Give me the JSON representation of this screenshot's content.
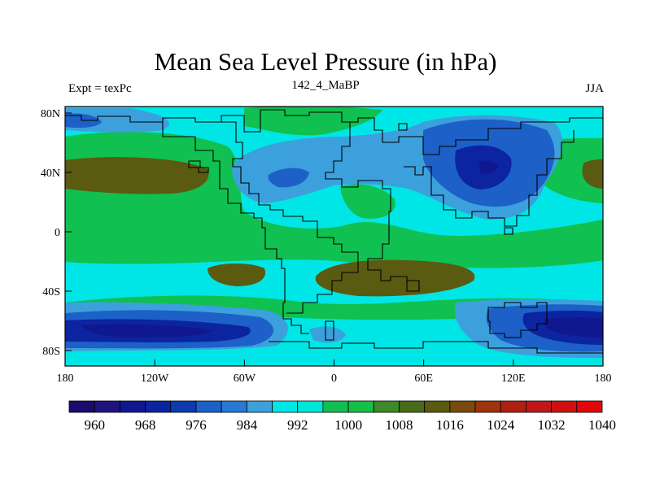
{
  "title": "Mean Sea Level Pressure (in hPa)",
  "left_label": "Expt = texPc",
  "center_label": "142_4_MaBP",
  "right_label": "JJA",
  "x_ticks": [
    "180",
    "120W",
    "60W",
    "0",
    "60E",
    "120E",
    "180"
  ],
  "y_ticks": [
    "80N",
    "40N",
    "0",
    "40S",
    "80S"
  ],
  "colorbar": {
    "colors": [
      "#1c0a6e",
      "#1e1480",
      "#10188f",
      "#0c24a0",
      "#0c3cb0",
      "#1c60c8",
      "#2878d4",
      "#3ca0dc",
      "#00e6e6",
      "#00e6d8",
      "#10c050",
      "#14c046",
      "#3c8a2a",
      "#4a6a1c",
      "#5a5a10",
      "#7a4a0c",
      "#a0340c",
      "#b02010",
      "#c01818",
      "#d01010",
      "#e00808"
    ],
    "labels": [
      "960",
      "968",
      "976",
      "984",
      "992",
      "1000",
      "1008",
      "1016",
      "1024",
      "1032",
      "1040"
    ]
  },
  "map_colors": {
    "base": "#00e6e6",
    "green": "#10c050",
    "brown": "#5a5a10",
    "light_blue": "#3ca0dc",
    "mid_blue": "#1c60c8",
    "dark_blue": "#0c24a0",
    "navy": "#10188f",
    "coast": "#000000"
  }
}
